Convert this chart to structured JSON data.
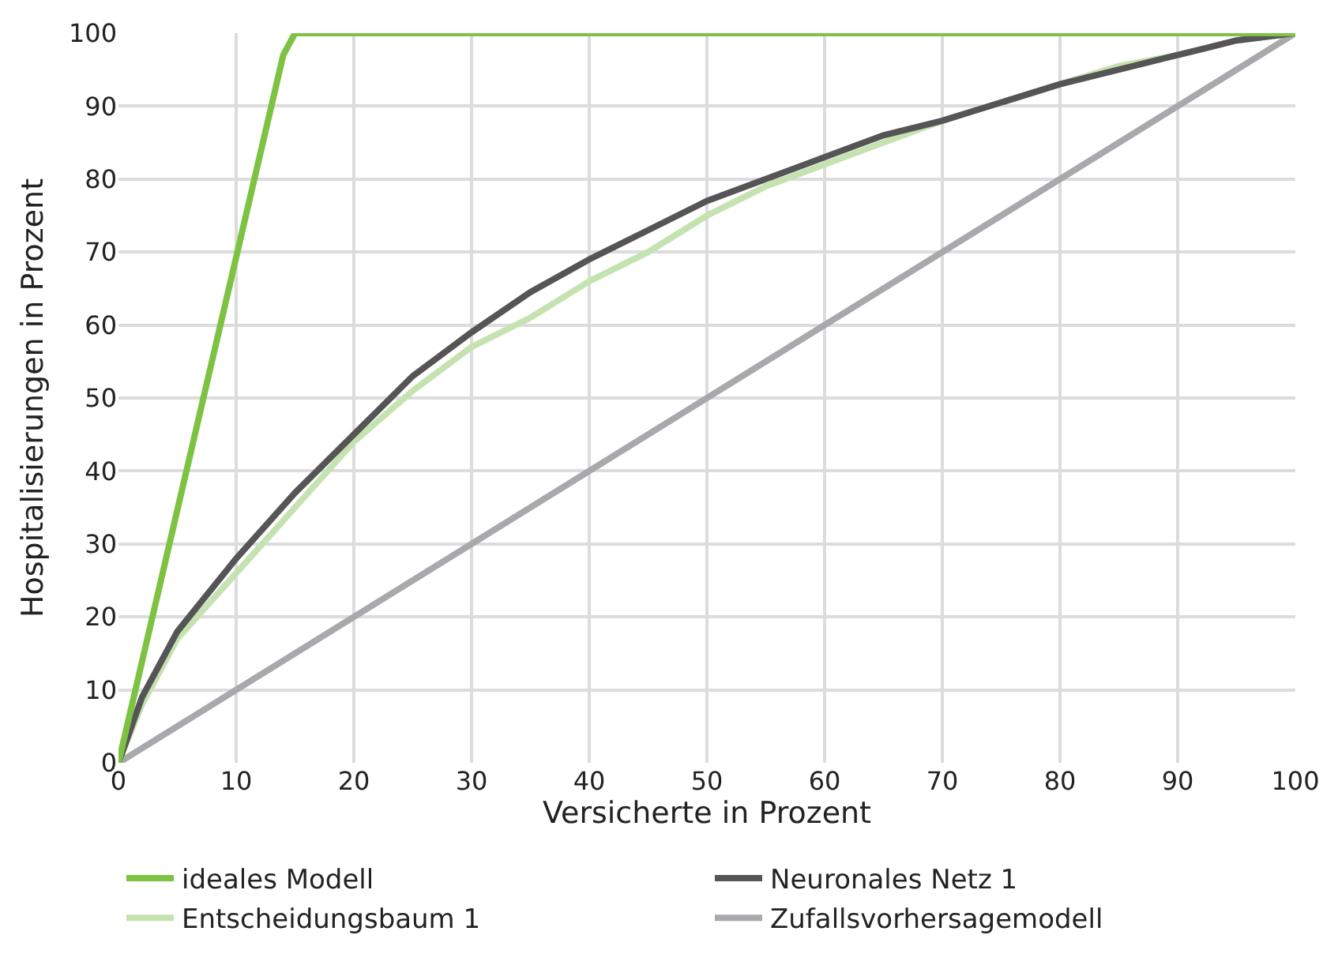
{
  "chart_data": {
    "type": "line",
    "xlabel": "Versicherte in Prozent",
    "ylabel": "Hospitalisierungen in Prozent",
    "xlim": [
      0,
      100
    ],
    "ylim": [
      0,
      100
    ],
    "xticks": [
      0,
      10,
      20,
      30,
      40,
      50,
      60,
      70,
      80,
      90,
      100
    ],
    "yticks": [
      0,
      10,
      20,
      30,
      40,
      50,
      60,
      70,
      80,
      90,
      100
    ],
    "grid": true,
    "legend": "bottom",
    "marker": "none",
    "line_style": "solid",
    "series": [
      {
        "name": "ideales Modell",
        "color": "#7dc242",
        "x": [
          0,
          14,
          15,
          100
        ],
        "values": [
          0,
          97,
          100,
          100
        ]
      },
      {
        "name": "Neuronales Netz 1",
        "color": "#555555",
        "x": [
          0,
          2,
          5,
          10,
          15,
          20,
          25,
          30,
          35,
          40,
          45,
          50,
          55,
          60,
          65,
          70,
          75,
          80,
          85,
          90,
          95,
          100
        ],
        "values": [
          0,
          9,
          18,
          28,
          37,
          45,
          53,
          59,
          64.5,
          69,
          73,
          77,
          80,
          83,
          86,
          88,
          90.5,
          93,
          95,
          97,
          99,
          100
        ]
      },
      {
        "name": "Entscheidungsbaum 1",
        "color": "#c5e3b0",
        "x": [
          0,
          2,
          5,
          10,
          15,
          20,
          25,
          30,
          35,
          40,
          45,
          50,
          55,
          60,
          65,
          70,
          75,
          80,
          85,
          90,
          95,
          100
        ],
        "values": [
          0,
          8,
          17,
          26,
          35,
          44,
          51,
          57,
          61,
          66,
          70,
          75,
          79,
          82,
          85,
          88,
          90.5,
          93,
          95.5,
          97,
          99,
          100
        ]
      },
      {
        "name": "Zufallsvorhersagemodell",
        "color": "#a7a9ac",
        "x": [
          0,
          100
        ],
        "values": [
          0,
          100
        ]
      }
    ]
  }
}
